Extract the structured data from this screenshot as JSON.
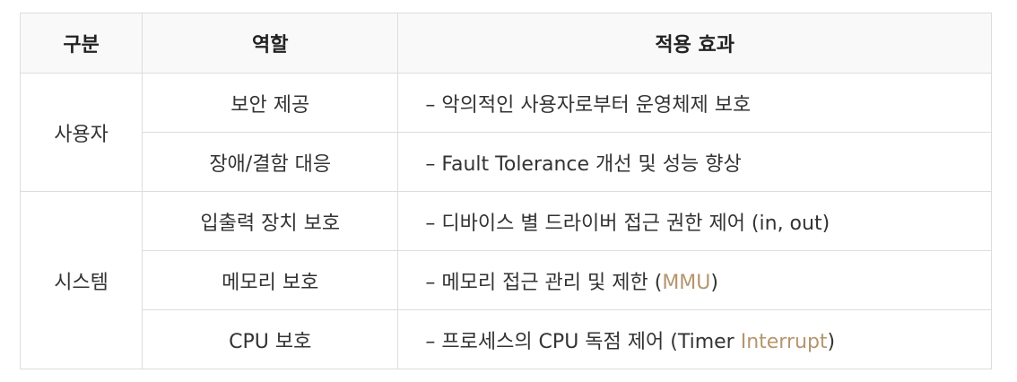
{
  "table": {
    "headers": [
      "구분",
      "역할",
      "적용 효과"
    ],
    "groups": [
      {
        "category": "사용자",
        "rows": [
          {
            "role": "보안 제공",
            "effect": "– 악의적인 사용자로부터 운영체제 보호"
          },
          {
            "role": "장애/결함 대응",
            "effect": "– Fault Tolerance 개선 및 성능 향상"
          }
        ]
      },
      {
        "category": "시스템",
        "rows": [
          {
            "role": "입출력 장치 보호",
            "effect": "– 디바이스 별 드라이버 접근 권한 제어 (in, out)"
          },
          {
            "role": "메모리 보호",
            "effect_pre": "– 메모리 접근 관리 및 제한 (",
            "effect_link": "MMU",
            "effect_post": ")"
          },
          {
            "role": "CPU 보호",
            "effect_pre": "– 프로세스의 CPU 독점 제어 (Timer ",
            "effect_link": "Interrupt",
            "effect_post": ")"
          }
        ]
      }
    ]
  },
  "colors": {
    "link": "#b5956d",
    "border": "#dddddd",
    "text": "#333333"
  }
}
